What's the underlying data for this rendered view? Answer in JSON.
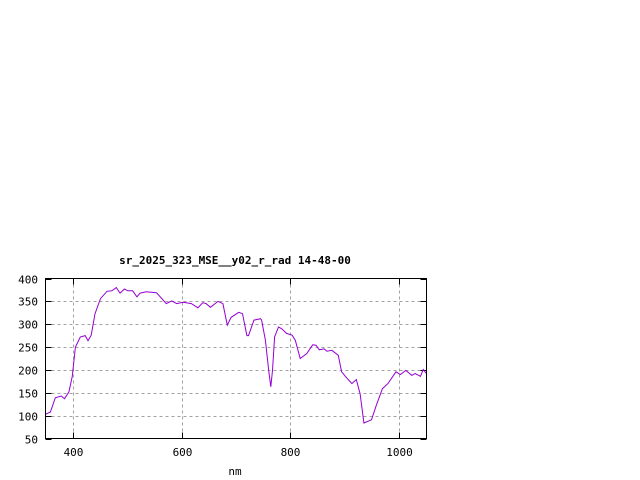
{
  "chart_data": {
    "type": "line",
    "title": "sr_2025_323_MSE__y02_r_rad 14-48-00",
    "xlabel": "nm",
    "ylabel": "",
    "xlim": [
      350,
      1050
    ],
    "ylim": [
      50,
      400
    ],
    "xticks": [
      400,
      600,
      800,
      1000
    ],
    "yticks": [
      50,
      100,
      150,
      200,
      250,
      300,
      350,
      400
    ],
    "grid": true,
    "line_color": "#9400d3",
    "series": [
      {
        "x": [
          350,
          359,
          368,
          379,
          385,
          393,
          399,
          405,
          414,
          423,
          428,
          434,
          441,
          451,
          463,
          472,
          480,
          487,
          495,
          501,
          510,
          518,
          524,
          535,
          554,
          572,
          582,
          591,
          603,
          618,
          630,
          639,
          645,
          653,
          667,
          676,
          684,
          691,
          705,
          712,
          720,
          723,
          733,
          745,
          747,
          754,
          760,
          764,
          767,
          771,
          778,
          784,
          793,
          803,
          809,
          818,
          830,
          841,
          847,
          853,
          862,
          867,
          876,
          888,
          894,
          903,
          913,
          921,
          928,
          935,
          949,
          958,
          969,
          979,
          994,
          1002,
          1012,
          1023,
          1029,
          1039,
          1044,
          1050
        ],
        "y": [
          103,
          108,
          139,
          143,
          137,
          152,
          185,
          250,
          272,
          275,
          264,
          276,
          323,
          356,
          372,
          373,
          380,
          368,
          377,
          373,
          373,
          360,
          368,
          371,
          369,
          345,
          351,
          345,
          348,
          345,
          336,
          347,
          345,
          337,
          350,
          345,
          298,
          315,
          326,
          323,
          275,
          275,
          309,
          312,
          309,
          265,
          199,
          163,
          199,
          272,
          294,
          290,
          280,
          276,
          265,
          225,
          236,
          255,
          254,
          244,
          246,
          241,
          243,
          232,
          196,
          183,
          170,
          179,
          148,
          84,
          91,
          123,
          159,
          170,
          196,
          190,
          199,
          188,
          192,
          186,
          201,
          192
        ]
      }
    ]
  }
}
